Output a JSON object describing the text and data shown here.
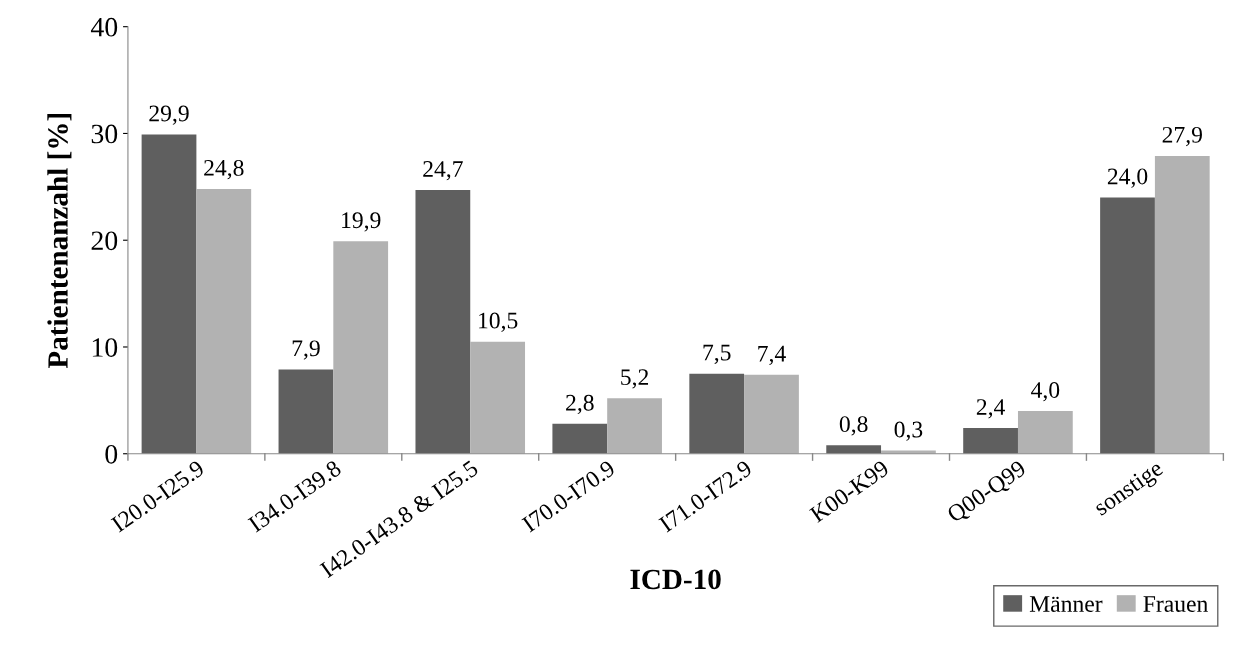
{
  "chart_data": {
    "type": "bar",
    "xlabel": "ICD-10",
    "ylabel": "Patientenanzahl [%]",
    "categories": [
      "I20.0-I25.9",
      "I34.0-I39.8",
      "I42.0-I43.8 & I25.5",
      "I70.0-I70.9",
      "I71.0-I72.9",
      "K00-K99",
      "Q00-Q99",
      "sonstige"
    ],
    "series": [
      {
        "name": "Männer",
        "color": "#5f5f5f",
        "values": [
          29.9,
          7.9,
          24.7,
          2.8,
          7.5,
          0.8,
          2.4,
          24.0
        ],
        "value_labels": [
          "29,9",
          "7,9",
          "24,7",
          "2,8",
          "7,5",
          "0,8",
          "2,4",
          "24,0"
        ]
      },
      {
        "name": "Frauen",
        "color": "#b2b2b2",
        "values": [
          24.8,
          19.9,
          10.5,
          5.2,
          7.4,
          0.3,
          4.0,
          27.9
        ],
        "value_labels": [
          "24,8",
          "19,9",
          "10,5",
          "5,2",
          "7,4",
          "0,3",
          "4,0",
          "27,9"
        ]
      }
    ],
    "ylim": [
      0,
      40
    ],
    "yticks": [
      0,
      10,
      20,
      30,
      40
    ],
    "grid": false,
    "legend": "bottom right"
  }
}
